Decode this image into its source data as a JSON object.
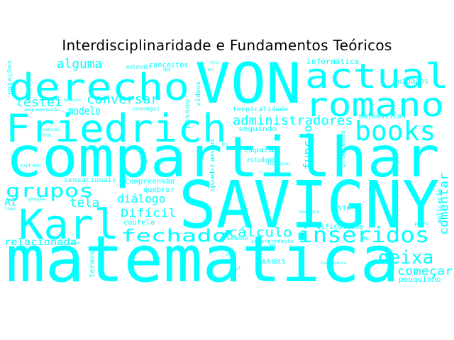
{
  "title": "Interdisciplinaridade e Fundamentos Teóricos",
  "colors": {
    "word": "#00ffff",
    "title": "#000000",
    "background": "#ffffff"
  },
  "words": [
    "matemática",
    "SAVIGNY",
    "compartilhar",
    "VON",
    "Friedrich",
    "Karl",
    "derecho",
    "actual",
    "romano",
    "books",
    "grupos",
    "fechado",
    "inseridos",
    "deixa",
    "administradores",
    "alguma",
    "testei",
    "conversar",
    "modelo",
    "tela",
    "diálogo",
    "Difícil",
    "cálculo",
    "começar",
    "comentar",
    "função",
    "relacionada",
    "AI",
    "conceitos",
    "informática",
    "cuidados",
    "matemáticos",
    "tecnicalidade",
    "seguindo",
    "estudando",
    "empaca",
    "quebrando",
    "Compreensão",
    "quebrar",
    "cautela",
    "dificuldade",
    "interpretação",
    "pouquinho",
    "WA0003",
    "sensacionais",
    "entender",
    "consegui",
    "passou",
    "vídeos",
    "notações",
    "curso",
    "problemas",
    "termos",
    "aplicação",
    "STK",
    "Gongora",
    "Companhia",
    "Acesso",
    "argumentação",
    "Disponível",
    "jul",
    "google",
    "Tomo",
    "vezes",
    "ser",
    "fnd",
    "seminal",
    "dq",
    "en",
    "oto",
    "gv",
    "Pl",
    "id",
    "ACR",
    "P47Y",
    "ir",
    "WA0000",
    "IMG"
  ]
}
